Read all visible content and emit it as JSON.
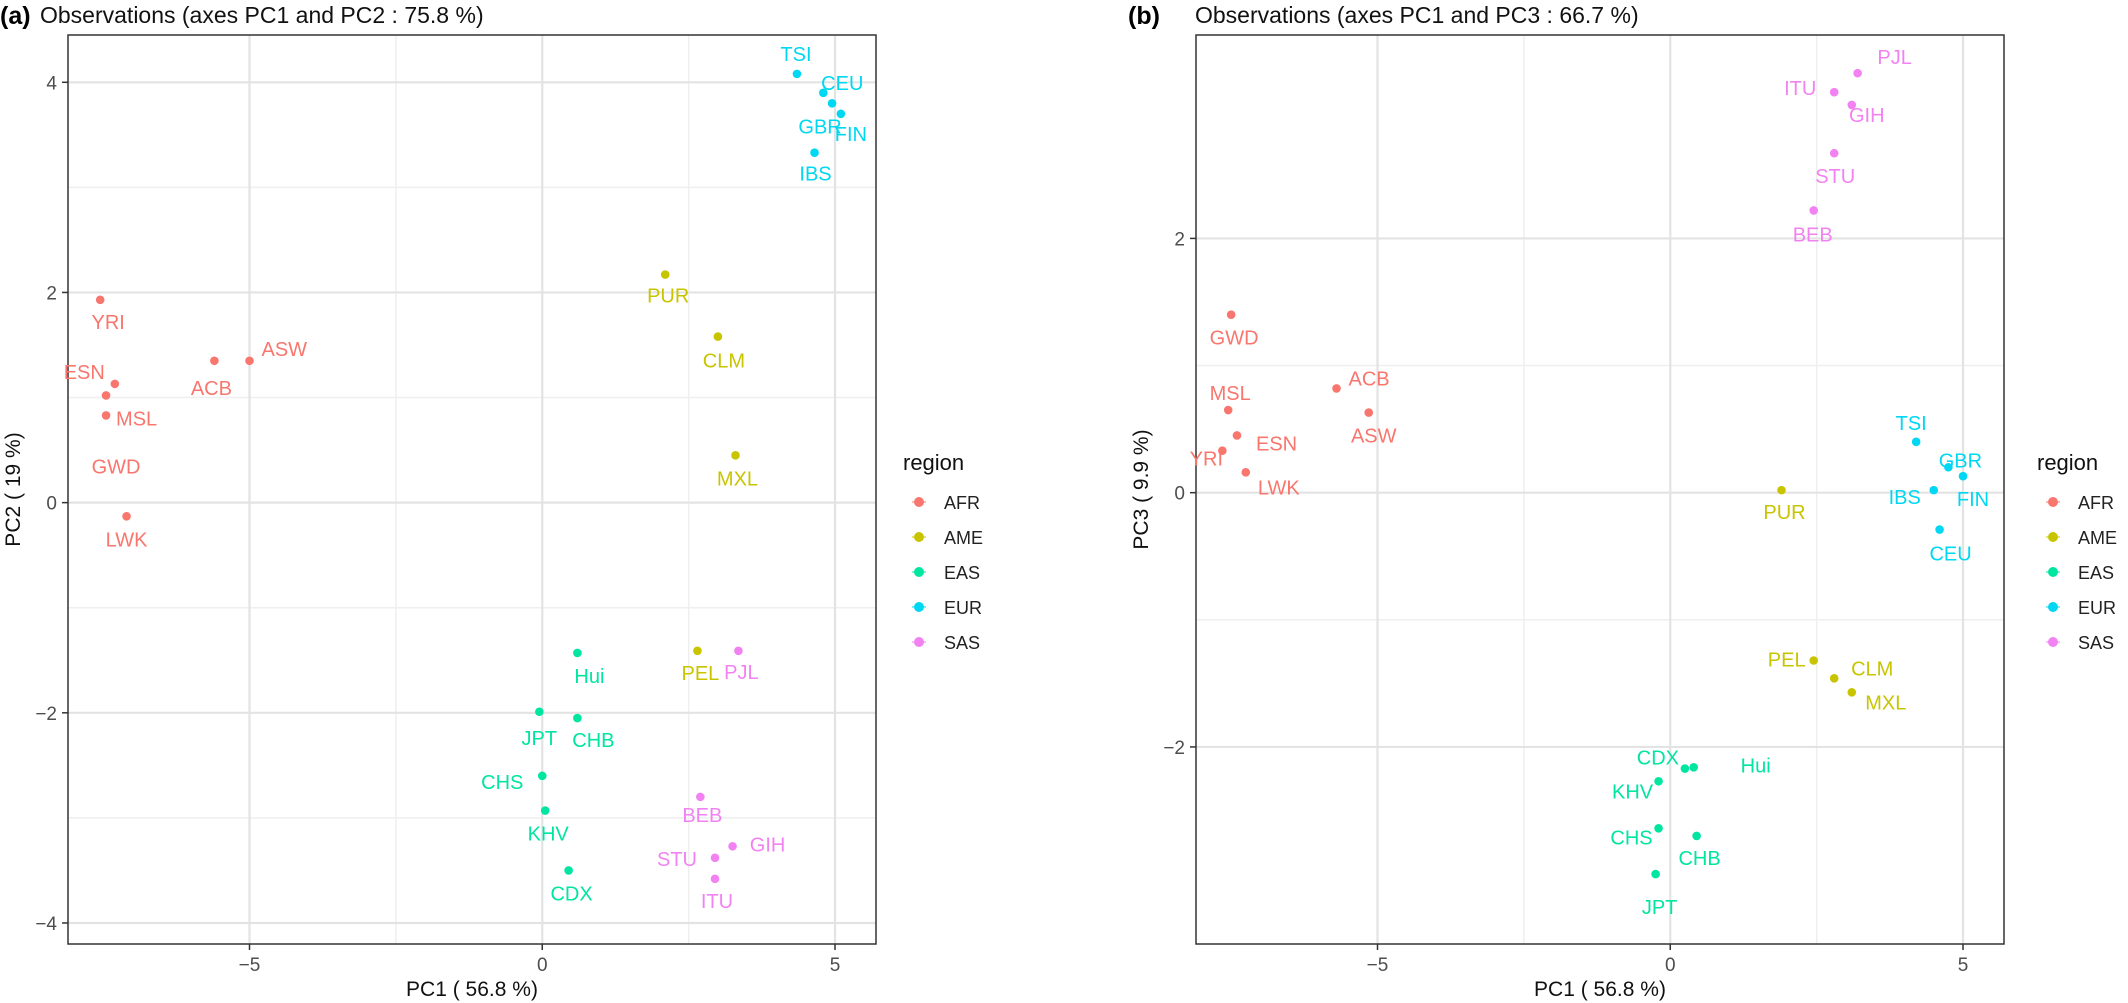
{
  "legend": {
    "title": "region",
    "items": [
      {
        "label": "AFR",
        "color": "#F8766D"
      },
      {
        "label": "AME",
        "color": "#C9C400"
      },
      {
        "label": "EAS",
        "color": "#00E5A0"
      },
      {
        "label": "EUR",
        "color": "#00D7F2"
      },
      {
        "label": "SAS",
        "color": "#F282F2"
      }
    ]
  },
  "chart_data": [
    {
      "type": "scatter",
      "panel_label": "(a)",
      "title": "Observations (axes PC1 and PC2 :  75.8 %)",
      "xlabel": "PC1 ( 56.8 %)",
      "ylabel": "PC2 ( 19 %)",
      "xlim": [
        -8.1,
        5.7
      ],
      "ylim": [
        -4.2,
        4.45
      ],
      "xticks": [
        -5,
        0,
        5
      ],
      "xtick_labels": [
        "−5",
        "0",
        "5"
      ],
      "yticks": [
        -4,
        -2,
        0,
        2,
        4
      ],
      "ytick_labels": [
        "−4",
        "−2",
        "0",
        "2",
        "4"
      ],
      "grid": true,
      "legend_position": "right",
      "points": [
        {
          "label": "YRI",
          "region": "AFR",
          "x": -7.55,
          "y": 1.93
        },
        {
          "label": "ESN",
          "region": "AFR",
          "x": -7.3,
          "y": 1.13
        },
        {
          "label": "MSL",
          "region": "AFR",
          "x": -7.45,
          "y": 1.02
        },
        {
          "label": "GWD",
          "region": "AFR",
          "x": -7.45,
          "y": 0.83
        },
        {
          "label": "ACB",
          "region": "AFR",
          "x": -5.6,
          "y": 1.35
        },
        {
          "label": "ASW",
          "region": "AFR",
          "x": -5.0,
          "y": 1.35
        },
        {
          "label": "LWK",
          "region": "AFR",
          "x": -7.1,
          "y": -0.13
        },
        {
          "label": "PUR",
          "region": "AME",
          "x": 2.1,
          "y": 2.17
        },
        {
          "label": "CLM",
          "region": "AME",
          "x": 3.0,
          "y": 1.58
        },
        {
          "label": "MXL",
          "region": "AME",
          "x": 3.3,
          "y": 0.45
        },
        {
          "label": "PEL",
          "region": "AME",
          "x": 2.65,
          "y": -1.41
        },
        {
          "label": "Hui",
          "region": "EAS",
          "x": 0.6,
          "y": -1.43
        },
        {
          "label": "JPT",
          "region": "EAS",
          "x": -0.05,
          "y": -1.99
        },
        {
          "label": "CHB",
          "region": "EAS",
          "x": 0.6,
          "y": -2.05
        },
        {
          "label": "CHS",
          "region": "EAS",
          "x": 0.0,
          "y": -2.6
        },
        {
          "label": "KHV",
          "region": "EAS",
          "x": 0.05,
          "y": -2.93
        },
        {
          "label": "CDX",
          "region": "EAS",
          "x": 0.45,
          "y": -3.5
        },
        {
          "label": "TSI",
          "region": "EUR",
          "x": 4.35,
          "y": 4.08
        },
        {
          "label": "CEU",
          "region": "EUR",
          "x": 4.8,
          "y": 3.9
        },
        {
          "label": "GBR",
          "region": "EUR",
          "x": 4.95,
          "y": 3.8
        },
        {
          "label": "FIN",
          "region": "EUR",
          "x": 5.1,
          "y": 3.7
        },
        {
          "label": "IBS",
          "region": "EUR",
          "x": 4.65,
          "y": 3.33
        },
        {
          "label": "PJL",
          "region": "SAS",
          "x": 3.35,
          "y": -1.41
        },
        {
          "label": "BEB",
          "region": "SAS",
          "x": 2.7,
          "y": -2.8
        },
        {
          "label": "GIH",
          "region": "SAS",
          "x": 3.25,
          "y": -3.27
        },
        {
          "label": "STU",
          "region": "SAS",
          "x": 2.95,
          "y": -3.38
        },
        {
          "label": "ITU",
          "region": "SAS",
          "x": 2.95,
          "y": -3.58
        }
      ]
    },
    {
      "type": "scatter",
      "panel_label": "(b)",
      "title": "Observations (axes PC1 and PC3 :  66.7 %)",
      "xlabel": "PC1 ( 56.8 %)",
      "ylabel": "PC3 ( 9.9 %)",
      "xlim": [
        -8.1,
        5.7
      ],
      "ylim": [
        -3.55,
        3.6
      ],
      "xticks": [
        -5,
        0,
        5
      ],
      "xtick_labels": [
        "−5",
        "0",
        "5"
      ],
      "yticks": [
        -2,
        0,
        2
      ],
      "ytick_labels": [
        "−2",
        "0",
        "2"
      ],
      "grid": true,
      "legend_position": "right",
      "points": [
        {
          "label": "GWD",
          "region": "AFR",
          "x": -7.5,
          "y": 1.4
        },
        {
          "label": "MSL",
          "region": "AFR",
          "x": -7.55,
          "y": 0.65
        },
        {
          "label": "ESN",
          "region": "AFR",
          "x": -7.4,
          "y": 0.45
        },
        {
          "label": "YRI",
          "region": "AFR",
          "x": -7.65,
          "y": 0.33
        },
        {
          "label": "LWK",
          "region": "AFR",
          "x": -7.25,
          "y": 0.16
        },
        {
          "label": "ACB",
          "region": "AFR",
          "x": -5.7,
          "y": 0.82
        },
        {
          "label": "ASW",
          "region": "AFR",
          "x": -5.15,
          "y": 0.63
        },
        {
          "label": "PUR",
          "region": "AME",
          "x": 1.9,
          "y": 0.02
        },
        {
          "label": "PEL",
          "region": "AME",
          "x": 2.45,
          "y": -1.32
        },
        {
          "label": "CLM",
          "region": "AME",
          "x": 2.8,
          "y": -1.46
        },
        {
          "label": "MXL",
          "region": "AME",
          "x": 3.1,
          "y": -1.57
        },
        {
          "label": "CDX",
          "region": "EAS",
          "x": 0.25,
          "y": -2.17
        },
        {
          "label": "Hui",
          "region": "EAS",
          "x": 0.4,
          "y": -2.16
        },
        {
          "label": "KHV",
          "region": "EAS",
          "x": -0.2,
          "y": -2.27
        },
        {
          "label": "CHS",
          "region": "EAS",
          "x": -0.2,
          "y": -2.64
        },
        {
          "label": "CHB",
          "region": "EAS",
          "x": 0.45,
          "y": -2.7
        },
        {
          "label": "JPT",
          "region": "EAS",
          "x": -0.25,
          "y": -3.0
        },
        {
          "label": "TSI",
          "region": "EUR",
          "x": 4.2,
          "y": 0.4
        },
        {
          "label": "GBR",
          "region": "EUR",
          "x": 4.75,
          "y": 0.2
        },
        {
          "label": "FIN",
          "region": "EUR",
          "x": 5.0,
          "y": 0.13
        },
        {
          "label": "IBS",
          "region": "EUR",
          "x": 4.5,
          "y": 0.02
        },
        {
          "label": "CEU",
          "region": "EUR",
          "x": 4.6,
          "y": -0.29
        },
        {
          "label": "PJL",
          "region": "SAS",
          "x": 3.2,
          "y": 3.3
        },
        {
          "label": "ITU",
          "region": "SAS",
          "x": 2.8,
          "y": 3.15
        },
        {
          "label": "GIH",
          "region": "SAS",
          "x": 3.1,
          "y": 3.05
        },
        {
          "label": "STU",
          "region": "SAS",
          "x": 2.8,
          "y": 2.67
        },
        {
          "label": "BEB",
          "region": "SAS",
          "x": 2.45,
          "y": 2.22
        }
      ]
    }
  ]
}
